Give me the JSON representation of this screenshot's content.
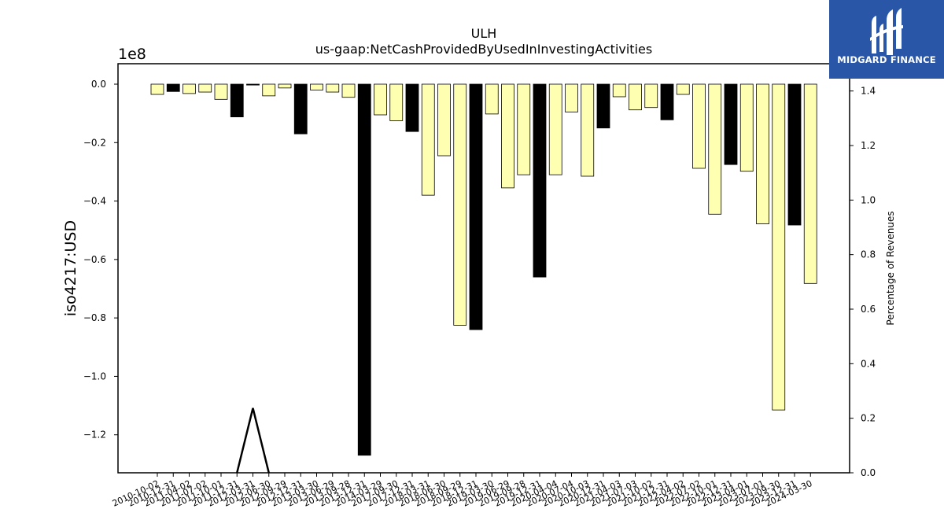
{
  "chart_data": {
    "type": "bar",
    "title": "ULH",
    "subtitle": "us-gaap:NetCashProvidedByUsedInInvestingActivities",
    "ylabel": "iso4217:USD",
    "y_offset_label": "1e8",
    "y2label": "Percentage of Revenues",
    "ylim": [
      -1.33,
      0.07
    ],
    "y2lim": [
      0.0,
      1.5
    ],
    "yticks": [
      "0.0",
      "−0.2",
      "−0.4",
      "−0.6",
      "−0.8",
      "−1.0",
      "−1.2"
    ],
    "ytick_values": [
      0.0,
      -0.2,
      -0.4,
      -0.6,
      -0.8,
      -1.0,
      -1.2
    ],
    "y2ticks": [
      "0.0",
      "0.2",
      "0.4",
      "0.6",
      "0.8",
      "1.0",
      "1.2",
      "1.4"
    ],
    "y2tick_values": [
      0.0,
      0.2,
      0.4,
      0.6,
      0.8,
      1.0,
      1.2,
      1.4
    ],
    "categories": [
      "2010-10-02",
      "2010-12-31",
      "2011-04-02",
      "2011-07-02",
      "2011-10-01",
      "2011-12-31",
      "2012-03-31",
      "2012-06-30",
      "2012-09-29",
      "2012-12-31",
      "2013-03-30",
      "2013-06-29",
      "2013-09-28",
      "2013-12-31",
      "2014-03-29",
      "2017-09-30",
      "2017-12-31",
      "2018-03-31",
      "2018-06-30",
      "2018-09-29",
      "2018-12-31",
      "2019-03-30",
      "2019-06-29",
      "2019-09-28",
      "2019-12-31",
      "2020-04-04",
      "2020-07-04",
      "2020-10-03",
      "2020-12-31",
      "2021-04-03",
      "2021-07-03",
      "2021-10-02",
      "2021-12-31",
      "2022-04-02",
      "2022-07-02",
      "2022-10-01",
      "2022-12-31",
      "2023-04-01",
      "2023-07-01",
      "2023-09-30",
      "2023-12-31",
      "2024-03-30"
    ],
    "values": [
      -0.035,
      -0.025,
      -0.032,
      -0.027,
      -0.052,
      -0.112,
      -0.003,
      -0.04,
      -0.013,
      -0.17,
      -0.02,
      -0.027,
      -0.045,
      -1.27,
      -0.105,
      -0.125,
      -0.162,
      -0.38,
      -0.245,
      -0.825,
      -0.84,
      -0.102,
      -0.355,
      -0.31,
      -0.66,
      -0.31,
      -0.095,
      -0.315,
      -0.15,
      -0.043,
      -0.088,
      -0.08,
      -0.122,
      -0.035,
      -0.288,
      -0.445,
      -0.275,
      -0.298,
      -0.478,
      -1.115,
      -0.482,
      -0.682
    ],
    "highlight": [
      false,
      true,
      false,
      false,
      false,
      true,
      true,
      false,
      false,
      true,
      false,
      false,
      false,
      true,
      false,
      false,
      true,
      false,
      false,
      false,
      true,
      false,
      false,
      false,
      true,
      false,
      false,
      false,
      true,
      false,
      false,
      false,
      true,
      false,
      false,
      false,
      true,
      false,
      false,
      false,
      true,
      false
    ],
    "bar_colors": {
      "normal": "#ffffb2",
      "highlight": "#000000",
      "edge": "#000000"
    },
    "ratio_line": {
      "x_categories": [
        "2011-12-31",
        "2012-03-31",
        "2012-06-30"
      ],
      "values": [
        0.0,
        0.237,
        0.0
      ]
    },
    "grid": false,
    "legend": "none"
  },
  "logo": {
    "text": "MIDGARD FINANCE",
    "background": "#2a56a8"
  }
}
